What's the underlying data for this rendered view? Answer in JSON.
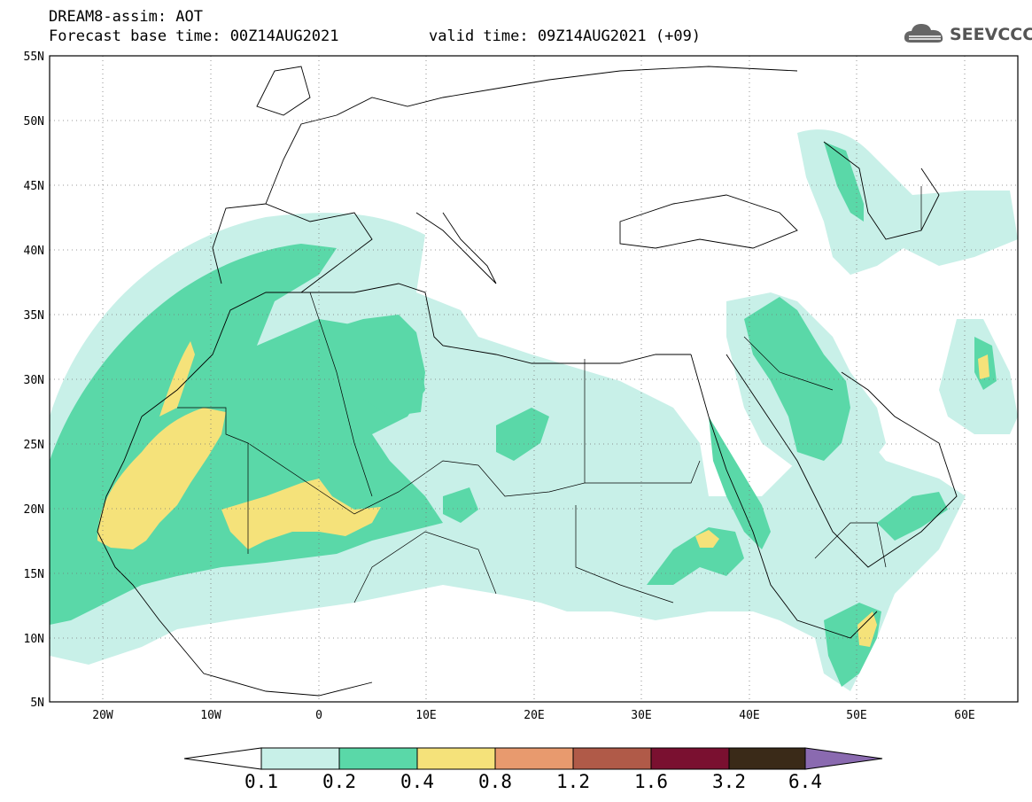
{
  "header": {
    "line1": "DREAM8-assim: AOT",
    "line2": "Forecast base time: 00Z14AUG2021",
    "valid": "valid time: 09Z14AUG2021 (+09)"
  },
  "logo": {
    "text": "SEEVCCC",
    "icon": "cloud-icon"
  },
  "map": {
    "lon_range": [
      -25,
      65
    ],
    "lat_range": [
      5,
      55
    ],
    "lat_labels": [
      "55N",
      "50N",
      "45N",
      "40N",
      "35N",
      "30N",
      "25N",
      "20N",
      "15N",
      "10N",
      "5N"
    ],
    "lon_labels": [
      "20W",
      "10W",
      "0",
      "10E",
      "20E",
      "30E",
      "40E",
      "50E",
      "60E"
    ],
    "variable": "AOT",
    "region": "North Africa, Mediterranean, Middle East"
  },
  "colorbar": {
    "labels": [
      "0.1",
      "0.2",
      "0.4",
      "0.8",
      "1.2",
      "1.6",
      "3.2",
      "6.4"
    ],
    "colors": [
      "#c8f0e8",
      "#5ad8a8",
      "#f5e27a",
      "#e89a6e",
      "#b05a48",
      "#7a1030",
      "#3a2a18",
      "#8a6ab0"
    ],
    "under_color": "#ffffff"
  }
}
